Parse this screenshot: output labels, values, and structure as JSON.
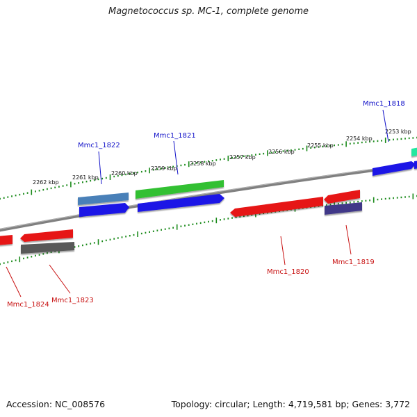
{
  "title": "Magnetococcus sp. MC-1, complete genome",
  "footer": {
    "accession": "Accession: NC_008576",
    "meta": "Topology: circular; Length: 4,719,581 bp; Genes: 3,772"
  },
  "scale_labels": [
    "2262 kbp",
    "2261 kbp",
    "2260 kbp",
    "2259 kbp",
    "2258 kbp",
    "2257 kbp",
    "2256 kbp",
    "2255 kbp",
    "2254 kbp",
    "2253 kbp"
  ],
  "gene_labels": {
    "forward": [
      "Mmc1_1822",
      "Mmc1_1821",
      "Mmc1_1818"
    ],
    "reverse": [
      "Mmc1_1824",
      "Mmc1_1823",
      "Mmc1_1820",
      "Mmc1_1819"
    ]
  },
  "colors": {
    "forward_label": "#1010c8",
    "reverse_label": "#c81010",
    "backbone": "#808080",
    "tick": "#1a8a1a"
  }
}
